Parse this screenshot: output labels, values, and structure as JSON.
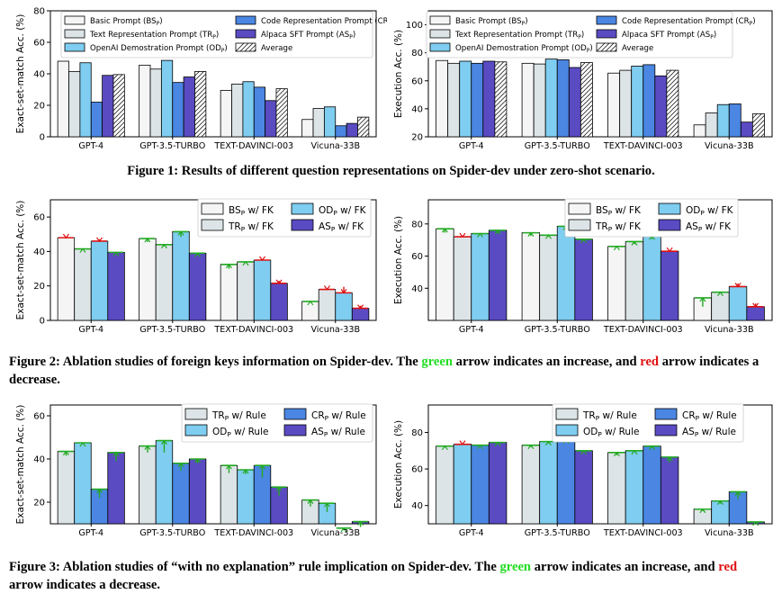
{
  "colors": {
    "BS": "#f5f5f5",
    "TR": "#dde4e7",
    "OD": "#7fcdf0",
    "CR": "#4a86e2",
    "AS": "#5a4bc2",
    "AVG": "#ffffff",
    "increase": "#22aa22",
    "decrease": "#dd1111"
  },
  "captions": {
    "fig1": "Figure 1: Results of different question representations on Spider-dev under zero-shot scenario.",
    "fig2_a": "Figure 2: Ablation studies of foreign keys information on Spider-dev. The ",
    "fig2_green": "green",
    "fig2_b": " arrow indicates an increase, and ",
    "fig2_red": "red",
    "fig2_c": " arrow indicates a decrease.",
    "fig3_a": "Figure 3: Ablation studies of “with no explanation” rule implication on Spider-dev. The ",
    "fig3_green": "green",
    "fig3_b": " arrow indicates an increase, and ",
    "fig3_red": "red",
    "fig3_c": " arrow indicates a decrease."
  },
  "chart_data": [
    {
      "id": "fig1-left",
      "type": "bar",
      "ylabel": "Exact-set-match Acc. (%)",
      "ylim": [
        0,
        80
      ],
      "yticks": [
        0,
        20,
        40,
        60,
        80
      ],
      "categories": [
        "GPT-4",
        "GPT-3.5-TURBO",
        "TEXT-DAVINCI-003",
        "Vicuna-33B"
      ],
      "legend": {
        "position": "top",
        "columns": 2
      },
      "series": [
        {
          "key": "BS",
          "name": "Basic Prompt (BS_P)",
          "values": [
            48,
            45.5,
            29.5,
            11
          ]
        },
        {
          "key": "TR",
          "name": "Text Representation Prompt (TR_P)",
          "values": [
            41.5,
            43,
            33.5,
            18
          ]
        },
        {
          "key": "OD",
          "name": "OpenAI Demostration Prompt (OD_P)",
          "values": [
            47,
            48.5,
            35,
            19
          ]
        },
        {
          "key": "CR",
          "name": "Code Representation Prompt (CR_P)",
          "values": [
            22,
            34.5,
            31.5,
            7
          ]
        },
        {
          "key": "AS",
          "name": "Alpaca SFT Prompt (AS_P)",
          "values": [
            39,
            38,
            23,
            8.5
          ]
        },
        {
          "key": "AVG",
          "name": "Average",
          "values": [
            39.5,
            41.5,
            30.5,
            12.5
          ]
        }
      ]
    },
    {
      "id": "fig1-right",
      "type": "bar",
      "ylabel": "Execution Acc. (%)",
      "ylim": [
        20,
        110
      ],
      "yticks": [
        20,
        40,
        60,
        80,
        100
      ],
      "categories": [
        "GPT-4",
        "GPT-3.5-TURBO",
        "TEXT-DAVINCI-003",
        "Vicuna-33B"
      ],
      "legend": {
        "position": "top",
        "columns": 2
      },
      "series": [
        {
          "key": "BS",
          "name": "Basic Prompt (BS_P)",
          "values": [
            74.5,
            72.5,
            65.5,
            28.5
          ]
        },
        {
          "key": "TR",
          "name": "Text Representation Prompt (TR_P)",
          "values": [
            72.5,
            72,
            67.5,
            37
          ]
        },
        {
          "key": "OD",
          "name": "OpenAI Demostration Prompt (OD_P)",
          "values": [
            74,
            75.5,
            70.5,
            43
          ]
        },
        {
          "key": "CR",
          "name": "Code Representation Prompt (CR_P)",
          "values": [
            72.5,
            75,
            71.5,
            43.5
          ]
        },
        {
          "key": "AS",
          "name": "Alpaca SFT Prompt (AS_P)",
          "values": [
            74,
            69.5,
            63.5,
            30.5
          ]
        },
        {
          "key": "AVG",
          "name": "Average",
          "values": [
            73.5,
            73,
            67.5,
            36.5
          ]
        }
      ]
    },
    {
      "id": "fig2-left",
      "type": "bar",
      "ylabel": "Exact-set-match Acc. (%)",
      "ylim": [
        0,
        70
      ],
      "yticks": [
        0,
        20,
        40,
        60
      ],
      "categories": [
        "GPT-4",
        "GPT-3.5-TURBO",
        "TEXT-DAVINCI-003",
        "Vicuna-33B"
      ],
      "legend": {
        "position": "top-right",
        "columns": 2
      },
      "series": [
        {
          "key": "BS",
          "name": "BS_P w/ FK",
          "values": [
            48,
            47.5,
            32.5,
            11
          ],
          "base": [
            48.5,
            45.5,
            30,
            10.5
          ]
        },
        {
          "key": "TR",
          "name": "TR_P w/ FK",
          "values": [
            41.5,
            44,
            34,
            18
          ],
          "base": [
            41,
            43,
            33.5,
            18.5
          ]
        },
        {
          "key": "OD",
          "name": "OD_P w/ FK",
          "values": [
            46,
            51.5,
            35,
            16
          ],
          "base": [
            47,
            48.5,
            35.5,
            19.5
          ]
        },
        {
          "key": "AS",
          "name": "AS_P w/ FK",
          "values": [
            39.5,
            39,
            21.5,
            7
          ],
          "base": [
            39,
            38,
            23,
            8.5
          ]
        }
      ]
    },
    {
      "id": "fig2-right",
      "type": "bar",
      "ylabel": "Execution Acc. (%)",
      "ylim": [
        20,
        95
      ],
      "yticks": [
        40,
        60,
        80
      ],
      "categories": [
        "GPT-4",
        "GPT-3.5-TURBO",
        "TEXT-DAVINCI-003",
        "Vicuna-33B"
      ],
      "legend": {
        "position": "top-right",
        "columns": 2
      },
      "series": [
        {
          "key": "BS",
          "name": "BS_P w/ FK",
          "values": [
            77,
            74.5,
            66,
            34
          ],
          "base": [
            74.5,
            72.5,
            65.5,
            28.5
          ]
        },
        {
          "key": "TR",
          "name": "TR_P w/ FK",
          "values": [
            72,
            73,
            69,
            37.5
          ],
          "base": [
            72.5,
            72,
            67.5,
            37
          ]
        },
        {
          "key": "OD",
          "name": "OD_P w/ FK",
          "values": [
            74,
            78.5,
            72.5,
            41
          ],
          "base": [
            74,
            75.5,
            70.5,
            43
          ]
        },
        {
          "key": "AS",
          "name": "AS_P w/ FK",
          "values": [
            76,
            70.5,
            63,
            28.5
          ],
          "base": [
            74,
            69.5,
            63.5,
            30.5
          ]
        }
      ]
    },
    {
      "id": "fig3-left",
      "type": "bar",
      "ylabel": "Exact-set-match Acc. (%)",
      "ylim": [
        10,
        65
      ],
      "yticks": [
        20,
        40,
        60
      ],
      "categories": [
        "GPT-4",
        "GPT-3.5-TURBO",
        "TEXT-DAVINCI-003",
        "Vicuna-33B"
      ],
      "legend": {
        "position": "top-right",
        "columns": 2
      },
      "series": [
        {
          "key": "TR",
          "name": "TR_P w/ Rule",
          "values": [
            43.5,
            46,
            37,
            21
          ],
          "base": [
            41.5,
            43,
            33.5,
            18
          ]
        },
        {
          "key": "OD",
          "name": "OD_P w/ Rule",
          "values": [
            47.5,
            48.5,
            35,
            19.5
          ],
          "base": [
            47,
            43,
            33,
            15.5
          ]
        },
        {
          "key": "CR",
          "name": "CR_P w/ Rule",
          "values": [
            26,
            38,
            37,
            8
          ],
          "base": [
            22,
            34.5,
            31.5,
            7
          ]
        },
        {
          "key": "AS",
          "name": "AS_P w/ Rule",
          "values": [
            43,
            40,
            27,
            11
          ],
          "base": [
            39,
            38,
            23,
            8.5
          ]
        }
      ]
    },
    {
      "id": "fig3-right",
      "type": "bar",
      "ylabel": "Execution Acc. (%)",
      "ylim": [
        30,
        95
      ],
      "yticks": [
        40,
        60,
        80
      ],
      "categories": [
        "GPT-4",
        "GPT-3.5-TURBO",
        "TEXT-DAVINCI-003",
        "Vicuna-33B"
      ],
      "legend": {
        "position": "top-right",
        "columns": 2
      },
      "series": [
        {
          "key": "TR",
          "name": "TR_P w/ Rule",
          "values": [
            72.5,
            73,
            69,
            38
          ],
          "base": [
            72,
            72,
            67.5,
            37
          ]
        },
        {
          "key": "OD",
          "name": "OD_P w/ Rule",
          "values": [
            73.5,
            75,
            70,
            42.5
          ],
          "base": [
            74,
            74,
            70,
            41
          ]
        },
        {
          "key": "CR",
          "name": "CR_P w/ Rule",
          "values": [
            73,
            76,
            72.5,
            47.5
          ],
          "base": [
            72.5,
            75,
            71.5,
            43.5
          ]
        },
        {
          "key": "AS",
          "name": "AS_P w/ Rule",
          "values": [
            74.5,
            70,
            66.5,
            31
          ],
          "base": [
            74,
            69.5,
            63.5,
            30.5
          ]
        }
      ]
    }
  ]
}
